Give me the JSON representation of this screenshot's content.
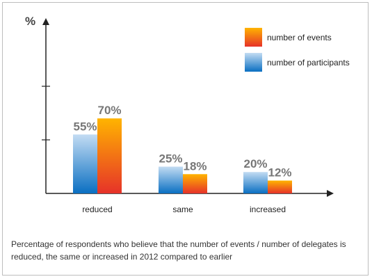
{
  "chart_data": {
    "type": "bar",
    "ylabel": "%",
    "categories": [
      "reduced",
      "same",
      "increased"
    ],
    "series": [
      {
        "name": "number of participants",
        "values": [
          55,
          25,
          20
        ],
        "labels": [
          "55%",
          "25%",
          "20%"
        ],
        "gradient": [
          "#0a6fc2",
          "#c3dcf3"
        ]
      },
      {
        "name": "number of events",
        "values": [
          70,
          18,
          12
        ],
        "labels": [
          "70%",
          "18%",
          "12%"
        ],
        "gradient": [
          "#e63229",
          "#ffb400"
        ]
      }
    ],
    "legend_order": [
      1,
      0
    ],
    "ylim": [
      0,
      100
    ],
    "legend_position": "top-right",
    "label_color": "#777777",
    "axis_color": "#222222"
  },
  "caption": "Percentage of respondents who believe that the number of events / number of delegates is reduced, the same or increased in 2012  compared to earlier"
}
